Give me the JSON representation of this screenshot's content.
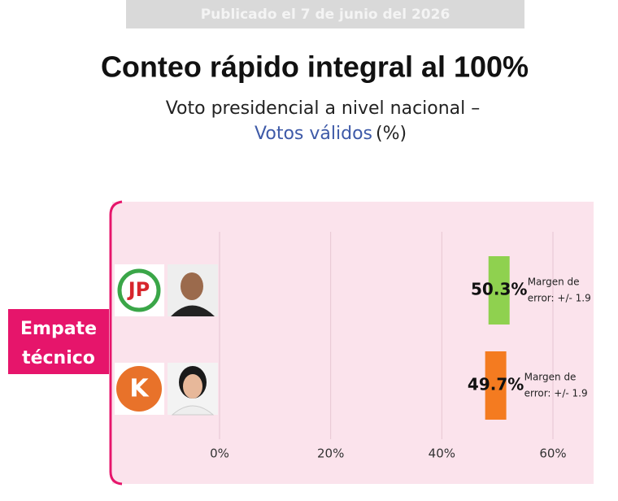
{
  "chart_data": {
    "type": "errorbar",
    "banner": "Publicado el 7 de junio del 2026",
    "title": "Conteo rápido integral al 100%",
    "subtitle": {
      "line1": "Voto presidencial a nivel nacional –",
      "highlight": "Votos válidos",
      "unit": "(%)"
    },
    "annotation": [
      "Empate",
      "técnico"
    ],
    "categories": [
      null,
      null
    ],
    "values": [
      50.3,
      49.7
    ],
    "value_labels": [
      "50.3%",
      "49.7%"
    ],
    "errors": [
      1.9,
      1.9
    ],
    "error_labels": [
      [
        "Margen de",
        "error: +/- 1.9"
      ],
      [
        "Margen de",
        "error: +/- 1.9"
      ]
    ],
    "colors": [
      "#8fd14f",
      "#f47b20"
    ],
    "xlim": [
      0,
      60
    ],
    "xticks": [
      {
        "value": 0,
        "label": "0%"
      },
      {
        "value": 20,
        "label": "20%"
      },
      {
        "value": 40,
        "label": "40%"
      },
      {
        "value": 60,
        "label": "60%"
      }
    ],
    "grid": true
  }
}
